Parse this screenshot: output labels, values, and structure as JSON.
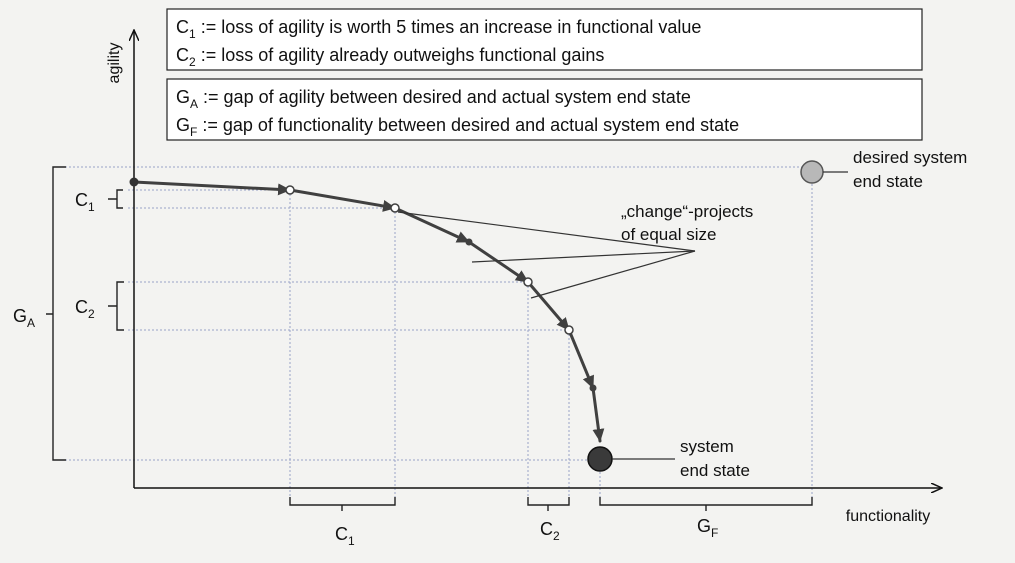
{
  "axes": {
    "y_label": "agility",
    "x_label": "functionality"
  },
  "definitions": {
    "c1": {
      "sym": "C",
      "sub": "1",
      "text": " := loss of agility is worth 5 times an increase in functional value"
    },
    "c2": {
      "sym": "C",
      "sub": "2",
      "text": " := loss of agility already outweighs functional gains"
    },
    "ga": {
      "sym": "G",
      "sub": "A",
      "text": " := gap of agility between desired  and actual system end state"
    },
    "gf": {
      "sym": "G",
      "sub": "F",
      "text": " := gap of functionality between desired and actual system end state"
    }
  },
  "callouts": {
    "desired_line1": "desired system",
    "desired_line2": "end state",
    "system_line1": "system",
    "system_line2": "end state",
    "change_line1": "„change“-projects",
    "change_line2": "of equal size"
  },
  "brackets": {
    "c1_left": {
      "sym": "C",
      "sub": "1"
    },
    "c2_left": {
      "sym": "C",
      "sub": "2"
    },
    "ga_left": {
      "sym": "G",
      "sub": "A"
    },
    "c1_bottom": {
      "sym": "C",
      "sub": "1"
    },
    "c2_bottom": {
      "sym": "C",
      "sub": "2"
    },
    "gf_bottom": {
      "sym": "G",
      "sub": "F"
    }
  },
  "colors": {
    "path": "#404040",
    "desired_marker": "#b8b8b8",
    "end_marker": "#3a3a3a",
    "guide": "#9aa3c8"
  }
}
